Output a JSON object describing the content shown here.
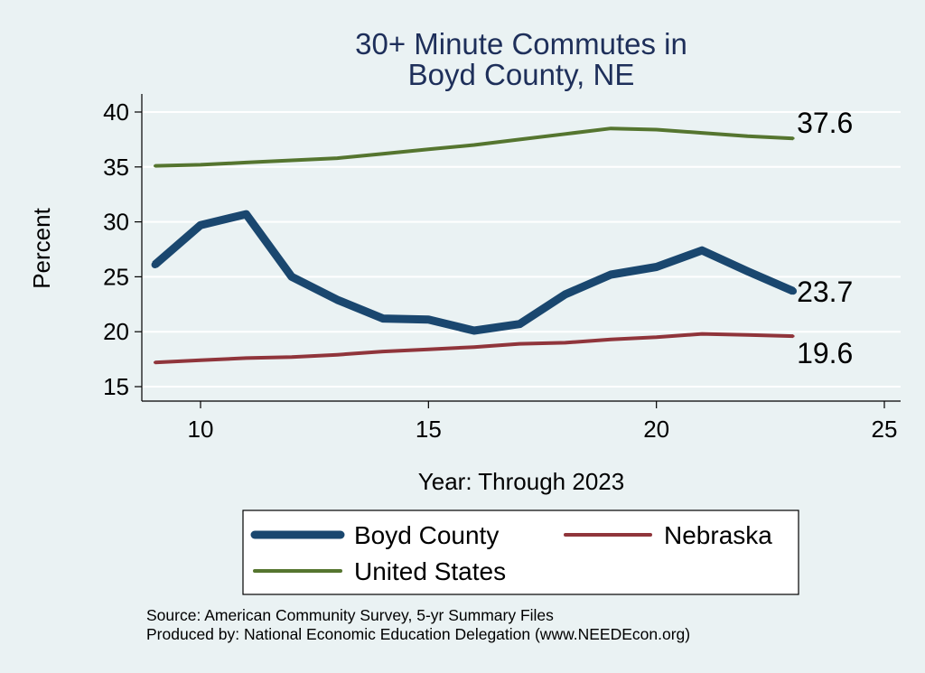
{
  "chart_data": {
    "type": "line",
    "title": [
      "30+ Minute Commutes in",
      "Boyd County, NE"
    ],
    "xlabel": "Year: Through 2023",
    "ylabel": "Percent",
    "xlim": [
      9,
      25
    ],
    "ylim": [
      14,
      41
    ],
    "xticks": [
      10,
      15,
      20,
      25
    ],
    "yticks": [
      15,
      20,
      25,
      30,
      35,
      40
    ],
    "grid": true,
    "x": [
      9,
      10,
      11,
      12,
      13,
      14,
      15,
      16,
      17,
      18,
      19,
      20,
      21,
      22,
      23
    ],
    "series": [
      {
        "name": "Boyd County",
        "color": "#1a476f",
        "values": [
          26.1,
          29.7,
          30.7,
          25.0,
          22.9,
          21.2,
          21.1,
          20.1,
          20.7,
          23.4,
          25.2,
          25.9,
          27.4,
          25.5,
          23.7
        ],
        "end_label": "23.7"
      },
      {
        "name": "Nebraska",
        "color": "#90353b",
        "values": [
          17.2,
          17.4,
          17.6,
          17.7,
          17.9,
          18.2,
          18.4,
          18.6,
          18.9,
          19.0,
          19.3,
          19.5,
          19.8,
          19.7,
          19.6
        ],
        "end_label": "19.6"
      },
      {
        "name": "United States",
        "color": "#55752f",
        "values": [
          35.1,
          35.2,
          35.4,
          35.6,
          35.8,
          36.2,
          36.6,
          37.0,
          37.5,
          38.0,
          38.5,
          38.4,
          38.1,
          37.8,
          37.6
        ],
        "end_label": "37.6"
      }
    ],
    "legend": {
      "placement": "bottom",
      "entries": [
        "Boyd County",
        "Nebraska",
        "United States"
      ]
    },
    "notes": [
      "Source: American Community Survey, 5-yr Summary Files",
      "Produced by: National Economic Education Delegation (www.NEEDEcon.org)"
    ]
  }
}
